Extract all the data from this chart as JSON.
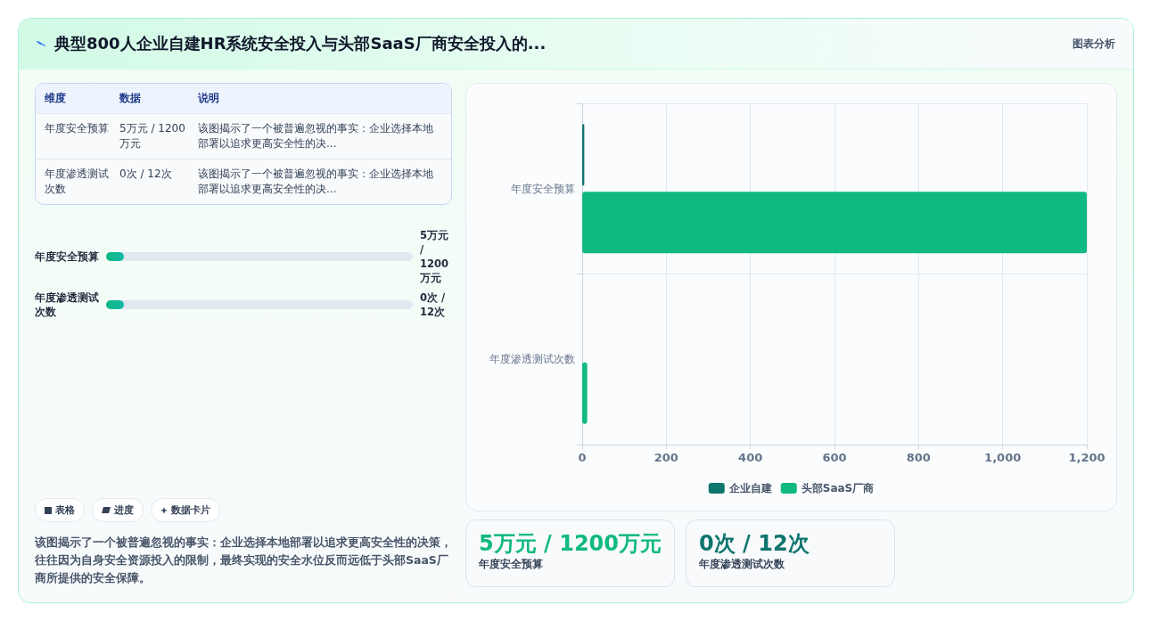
{
  "chart_data": [
    {
      "type": "other",
      "title": "典型800人企业自建HR系统安全投入与头部SaaS厂商安全投入的...",
      "annotations": [
        "图表分析"
      ]
    },
    {
      "type": "other",
      "annotations": [
        "维度",
        "数据",
        "说明",
        "年度安全预算",
        "5万元 / 1200万元",
        "该图揭示了一个被普遍忽视的事实：企业选择本地部署以追求更高安全性的决...",
        "年度渗透测试次数",
        "0次 / 12次",
        "该图揭示了一个被普遍忽视的事实：企业选择本地部署以追求更高安全性的决..."
      ]
    },
    {
      "type": "other",
      "annotations": [
        "年度安全预算",
        "5万元 / 1200万元",
        "年度渗透测试次数",
        "0次 / 12次"
      ]
    },
    {
      "type": "other",
      "annotations": [
        "表格",
        "进度",
        "数据卡片"
      ]
    },
    {
      "type": "other",
      "annotations": [
        "该图揭示了一个被普遍忽视的事实：企业选择本地部署以追求更高安全性的决策，往往因为自身安全资源投入的限制，最终实现的安全水位反而远低于头部SaaS厂商所提供的安全保障。"
      ]
    },
    {
      "type": "bar",
      "orientation": "horizontal",
      "categories": [
        "年度安全预算",
        "年度渗透测试次数"
      ],
      "series": [
        {
          "name": "企业自建",
          "color": "#0f766e",
          "values": [
            5,
            0
          ]
        },
        {
          "name": "头部SaaS厂商",
          "color": "#10b981",
          "values": [
            1200,
            12
          ]
        }
      ],
      "xlim": [
        0,
        1200
      ],
      "xticks": [
        0,
        200,
        400,
        600,
        800,
        {
          "value": 1000,
          "label": "1,000"
        },
        {
          "value": 1200,
          "label": "1,200"
        }
      ],
      "grid": true,
      "legend": "bottom"
    },
    {
      "type": "other",
      "annotations": [
        "5万元 / 1200万元",
        "年度安全预算"
      ]
    },
    {
      "type": "other",
      "annotations": [
        "0次 / 12次",
        "年度渗透测试次数"
      ]
    }
  ]
}
